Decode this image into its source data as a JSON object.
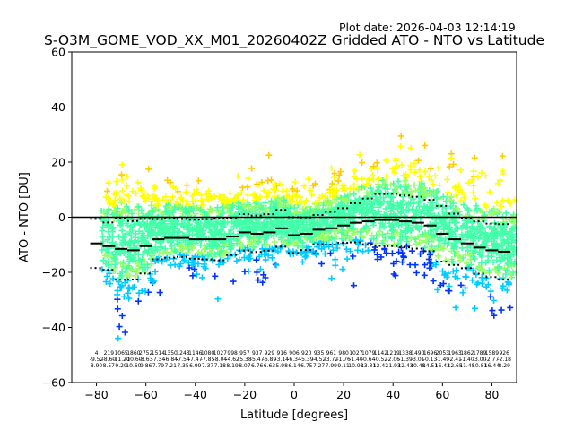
{
  "chart_data": {
    "type": "scatter",
    "title": "S-O3M_GOME_VOD_XX_M01_20260402Z Gridded ATO - NTO vs Latitude",
    "subtitle": "Plot date: 2026-04-03 12:14:19",
    "xlabel": "Latitude [degrees]",
    "ylabel": "ATO - NTO [DU]",
    "xlim": [
      -90,
      90
    ],
    "ylim": [
      -60,
      60
    ],
    "xticks": [
      "−80",
      "−60",
      "−40",
      "−20",
      "0",
      "20",
      "40",
      "60",
      "80"
    ],
    "xtick_values": [
      -80,
      -60,
      -40,
      -20,
      0,
      20,
      40,
      60,
      80
    ],
    "yticks": [
      "−60",
      "−40",
      "−20",
      "0",
      "20",
      "40",
      "60"
    ],
    "ytick_values": [
      -60,
      -40,
      -20,
      0,
      20,
      40,
      60
    ],
    "zero_line": 0,
    "marker": "+",
    "colors": [
      "#0033ff",
      "#00ccff",
      "#44ffaa",
      "#99ff66",
      "#ffff00",
      "#ffcc00"
    ],
    "bins_lat": [
      -80,
      -75,
      -70,
      -65,
      -60,
      -55,
      -50,
      -45,
      -40,
      -35,
      -30,
      -25,
      -20,
      -15,
      -10,
      -5,
      0,
      5,
      10,
      15,
      20,
      25,
      30,
      35,
      40,
      45,
      50,
      55,
      60,
      65,
      70,
      75,
      80,
      85
    ],
    "mean": [
      -9.5,
      -10.5,
      -11.5,
      -12,
      -10.5,
      -8,
      -7.5,
      -7.5,
      -8,
      -8,
      -8,
      -7,
      -5.5,
      -6,
      -5.5,
      -4,
      -6.5,
      -6,
      -4.5,
      -4,
      -3,
      -2,
      -1.5,
      -1,
      -1,
      -1.5,
      -2,
      -3,
      -6,
      -8,
      -9.5,
      -11,
      -12,
      -12.5
    ],
    "std": [
      8.9,
      8.6,
      11.2,
      10.6,
      9.9,
      7.3,
      7.2,
      6.9,
      7.1,
      7.3,
      7.6,
      6.7,
      6.6,
      6.6,
      6.6,
      6.7,
      6.5,
      5.9,
      5.3,
      5.9,
      6.3,
      7.1,
      8.3,
      9.4,
      9.5,
      9.4,
      9.4,
      9.3,
      10.1,
      9.3,
      9.0,
      9.5,
      9.7,
      10.0
    ],
    "stats_rows": [
      [
        "4",
        "219",
        "1065",
        "1860",
        "2752",
        "1514",
        "1350",
        "1243",
        "1146",
        "1080",
        "1027",
        "998",
        "957",
        "937",
        "929",
        "916",
        "906",
        "920",
        "935",
        "961",
        "980",
        "1027",
        "1079",
        "1142",
        "1219",
        "1338",
        "1490",
        "1696",
        "2053",
        "1963",
        "1862",
        "1789",
        "1589",
        "926"
      ],
      [
        "-9.52",
        "-8.60",
        "-11.20",
        "-10.60",
        "-8.63",
        "-7.34",
        "-6.84",
        "-7.54",
        "-7.47",
        "-7.85",
        "-8.04",
        "-4.62",
        "-5.38",
        "-5.47",
        "-6.89",
        "-3.14",
        "-6.34",
        "-5.39",
        "-4.52",
        "-3.72",
        "-1.76",
        "-1.40",
        "-0.64",
        "-0.52",
        "-2.06",
        "-1.39",
        "-3.01",
        "-0.13",
        "-1.49",
        "-2.41",
        "-1.40",
        "-3.00",
        "-2.77",
        "-2.18"
      ],
      [
        "8.90",
        "8.57",
        "9.29",
        "10.60",
        "9.86",
        "7.79",
        "7.21",
        "7.35",
        "6.99",
        "7.37",
        "7.18",
        "8.19",
        "8.07",
        "6.76",
        "6.63",
        "5.98",
        "6.14",
        "6.75",
        "7.27",
        "7.99",
        "9.11",
        "10.93",
        "13.31",
        "12.42",
        "11.93",
        "12.43",
        "10.48",
        "14.51",
        "16.42",
        "12.65",
        "11.48",
        "10.81",
        "16.44",
        "8.29"
      ]
    ]
  }
}
